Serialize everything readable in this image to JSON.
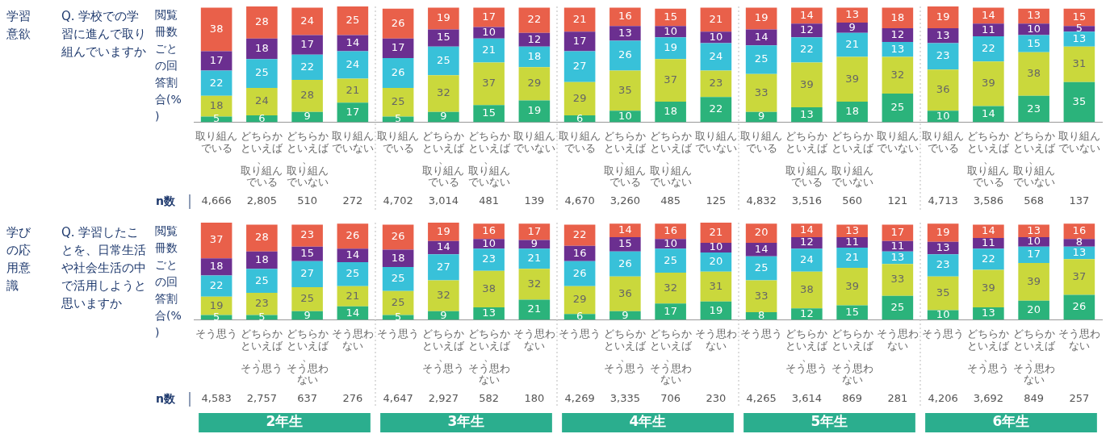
{
  "chart_data": [
    {
      "type": "bar",
      "stacked": true,
      "data_labels": true,
      "grid": false,
      "legend": false,
      "tick_labels": "x",
      "subtitle": "Q. 学校での学習に進んで取り組んでいますか",
      "ylabel": "閲覧冊数ごとの回答割合(%)",
      "categories": [
        "取り組んでいる",
        "どちらかといえば、取り組んでいる",
        "どちらかといえば、取り組んでいない",
        "取り組んでいない",
        "取り組んでいる",
        "どちらかといえば、取り組んでいる",
        "どちらかといえば、取り組んでいない",
        "取り組んでいない",
        "取り組んでいる",
        "どちらかといえば、取り組んでいる",
        "どちらかといえば、取り組んでいない",
        "取り組んでいない",
        "取り組んでいる",
        "どちらかといえば、取り組んでいる",
        "どちらかといえば、取り組んでいない",
        "取り組んでいない",
        "取り組んでいる",
        "どちらかといえば、取り組んでいる",
        "どちらかといえば、取り組んでいない",
        "取り組んでいない"
      ],
      "series": [
        {
          "color": "#2bb37b",
          "values": [
            5,
            6,
            9,
            17,
            5,
            9,
            15,
            19,
            6,
            10,
            18,
            22,
            9,
            13,
            18,
            25,
            10,
            14,
            23,
            35
          ]
        },
        {
          "color": "#cad83c",
          "values": [
            18,
            24,
            28,
            21,
            25,
            32,
            37,
            29,
            29,
            35,
            37,
            23,
            33,
            39,
            39,
            32,
            36,
            39,
            38,
            31
          ]
        },
        {
          "color": "#38c1d9",
          "values": [
            22,
            25,
            22,
            24,
            26,
            25,
            21,
            18,
            27,
            26,
            19,
            24,
            25,
            22,
            21,
            13,
            23,
            22,
            15,
            13
          ]
        },
        {
          "color": "#6b2f90",
          "values": [
            17,
            18,
            17,
            14,
            17,
            15,
            10,
            12,
            17,
            13,
            10,
            10,
            14,
            12,
            9,
            12,
            13,
            11,
            10,
            5
          ]
        },
        {
          "color": "#e9604a",
          "values": [
            38,
            28,
            24,
            25,
            26,
            19,
            17,
            22,
            21,
            16,
            15,
            21,
            19,
            14,
            13,
            18,
            19,
            14,
            13,
            15
          ]
        }
      ],
      "annotations": [
        "学習意欲",
        "n数",
        "4,666",
        "2,805",
        "510",
        "272",
        "4,702",
        "3,014",
        "481",
        "139",
        "4,670",
        "3,260",
        "485",
        "125",
        "4,832",
        "3,516",
        "560",
        "121",
        "4,713",
        "3,586",
        "568",
        "137"
      ]
    },
    {
      "type": "bar",
      "stacked": true,
      "data_labels": true,
      "grid": false,
      "legend": false,
      "tick_labels": "x",
      "subtitle": "Q. 学習したことを、日常生活や社会生活の中で活用しようと思いますか",
      "ylabel": "閲覧冊数ごとの回答割合(%)",
      "categories": [
        "そう思う",
        "どちらかといえば、そう思う",
        "どちらかといえば、そう思わない",
        "そう思わない",
        "そう思う",
        "どちらかといえば、そう思う",
        "どちらかといえば、そう思わない",
        "そう思わない",
        "そう思う",
        "どちらかといえば、そう思う",
        "どちらかといえば、そう思わない",
        "そう思わない",
        "そう思う",
        "どちらかといえば、そう思う",
        "どちらかといえば、そう思わない",
        "そう思わない",
        "そう思う",
        "どちらかといえば、そう思う",
        "どちらかといえば、そう思わない",
        "そう思わない"
      ],
      "series": [
        {
          "color": "#2bb37b",
          "values": [
            5,
            5,
            9,
            14,
            5,
            9,
            13,
            21,
            6,
            9,
            17,
            19,
            8,
            12,
            15,
            25,
            10,
            13,
            20,
            26
          ]
        },
        {
          "color": "#cad83c",
          "values": [
            19,
            23,
            25,
            21,
            25,
            32,
            38,
            32,
            29,
            36,
            32,
            31,
            33,
            38,
            39,
            33,
            35,
            39,
            39,
            37
          ]
        },
        {
          "color": "#38c1d9",
          "values": [
            22,
            25,
            27,
            25,
            25,
            27,
            23,
            21,
            26,
            26,
            25,
            20,
            25,
            24,
            21,
            13,
            23,
            22,
            17,
            13
          ]
        },
        {
          "color": "#6b2f90",
          "values": [
            18,
            18,
            15,
            14,
            18,
            14,
            10,
            9,
            16,
            15,
            10,
            10,
            14,
            12,
            11,
            11,
            13,
            11,
            10,
            8
          ]
        },
        {
          "color": "#e9604a",
          "values": [
            37,
            28,
            23,
            26,
            26,
            19,
            16,
            17,
            22,
            14,
            16,
            21,
            20,
            14,
            13,
            17,
            19,
            14,
            13,
            16
          ]
        }
      ],
      "annotations": [
        "学びの応用意識",
        "n数",
        "4,583",
        "2,757",
        "637",
        "276",
        "4,647",
        "2,927",
        "582",
        "180",
        "4,269",
        "3,335",
        "706",
        "230",
        "4,265",
        "3,614",
        "869",
        "281",
        "4,206",
        "3,692",
        "849",
        "257",
        "2年生",
        "3年生",
        "4年生",
        "5年生",
        "6年生"
      ]
    }
  ]
}
